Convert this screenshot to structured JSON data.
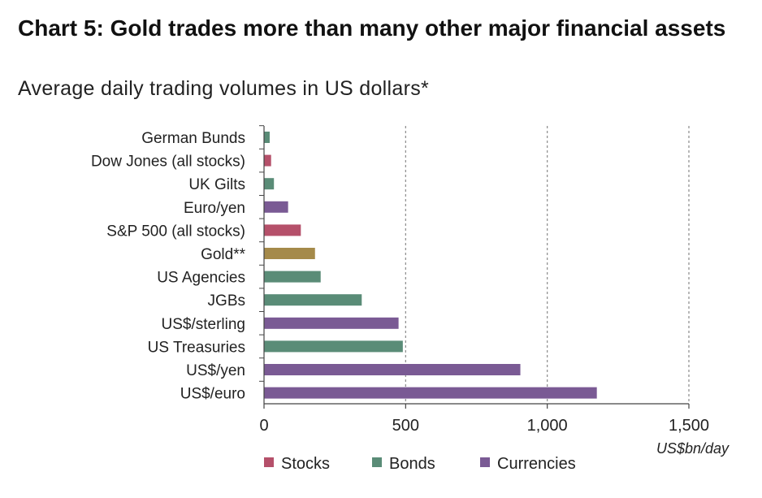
{
  "chart_data": {
    "type": "bar",
    "orientation": "horizontal",
    "title": "Chart 5: Gold trades more than many other major financial assets",
    "subtitle": "Average daily trading volumes in US dollars*",
    "xlabel": "US$bn/day",
    "xlim": [
      0,
      1500
    ],
    "xticks": [
      0,
      500,
      1000,
      1500
    ],
    "xtick_labels": [
      "0",
      "500",
      "1,000",
      "1,500"
    ],
    "grid": "vertical dashed at major ticks",
    "legend_position": "bottom",
    "legend": [
      {
        "name": "Stocks",
        "color": "#b5506a"
      },
      {
        "name": "Bonds",
        "color": "#5a8c77"
      },
      {
        "name": "Currencies",
        "color": "#7a5a94"
      }
    ],
    "highlight_color": "#a58a4a",
    "categories": [
      {
        "label": "German Bunds",
        "value": 20,
        "group": "Bonds"
      },
      {
        "label": "Dow Jones (all stocks)",
        "value": 25,
        "group": "Stocks"
      },
      {
        "label": "UK Gilts",
        "value": 35,
        "group": "Bonds"
      },
      {
        "label": "Euro/yen",
        "value": 85,
        "group": "Currencies"
      },
      {
        "label": "S&P 500 (all stocks)",
        "value": 130,
        "group": "Stocks"
      },
      {
        "label": "Gold**",
        "value": 180,
        "group": "Gold"
      },
      {
        "label": "US Agencies",
        "value": 200,
        "group": "Bonds"
      },
      {
        "label": "JGBs",
        "value": 345,
        "group": "Bonds"
      },
      {
        "label": "US$/sterling",
        "value": 475,
        "group": "Currencies"
      },
      {
        "label": "US Treasuries",
        "value": 490,
        "group": "Bonds"
      },
      {
        "label": "US$/yen",
        "value": 905,
        "group": "Currencies"
      },
      {
        "label": "US$/euro",
        "value": 1175,
        "group": "Currencies"
      }
    ]
  }
}
